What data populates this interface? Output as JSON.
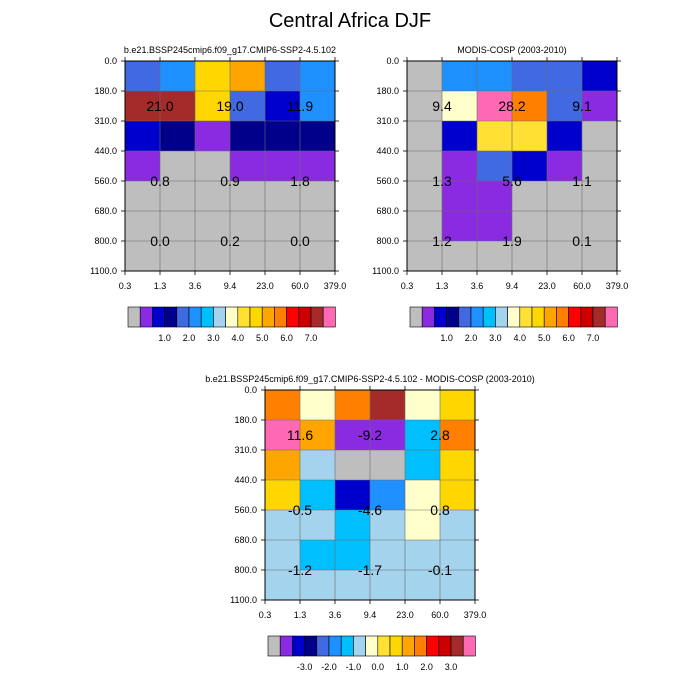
{
  "figure": {
    "title": "Central Africa DJF"
  },
  "colors": {
    "missing": "#BEBEBE",
    "abs_palette": [
      "#8A2BE2",
      "#0000CD",
      "#00008B",
      "#4169E1",
      "#1E90FF",
      "#00BFFF",
      "#A4D3EE",
      "#FFFFCC",
      "#FFE033",
      "#FFD700",
      "#FFA500",
      "#FF7F00",
      "#FF0000",
      "#CC0000",
      "#A52A2A",
      "#FF69B4"
    ],
    "diff_palette": [
      "#8A2BE2",
      "#0000CD",
      "#00008B",
      "#4169E1",
      "#1E90FF",
      "#00BFFF",
      "#A4D3EE",
      "#FFFFCC",
      "#FFE033",
      "#FFD700",
      "#FFA500",
      "#FF7F00",
      "#FF0000",
      "#CC0000",
      "#A52A2A",
      "#FF69B4"
    ]
  },
  "chart_data": [
    {
      "id": "model",
      "type": "heatmap",
      "title": "b.e21.BSSP245cmip6.f09_g17.CMIP6-SSP2-4.5.102",
      "xticks": [
        "0.3",
        "1.3",
        "3.6",
        "9.4",
        "23.0",
        "60.0",
        "379.0"
      ],
      "yticks": [
        "0.0",
        "180.0",
        "310.0",
        "440.0",
        "560.0",
        "680.0",
        "800.0",
        "1100.0"
      ],
      "cells": [
        [
          "#4169E1",
          "#1E90FF",
          "#FFD700",
          "#FFA500",
          "#4169E1",
          "#1E90FF"
        ],
        [
          "#A52A2A",
          "#A52A2A",
          "#FFD700",
          "#4169E1",
          "#0000CD",
          "#1E90FF"
        ],
        [
          "#0000CD",
          "#00008B",
          "#8A2BE2",
          "#00008B",
          "#00008B",
          "#00008B"
        ],
        [
          "#8A2BE2",
          "#BEBEBE",
          "#BEBEBE",
          "#8A2BE2",
          "#8A2BE2",
          "#8A2BE2"
        ],
        [
          "#BEBEBE",
          "#BEBEBE",
          "#BEBEBE",
          "#BEBEBE",
          "#BEBEBE",
          "#BEBEBE"
        ],
        [
          "#BEBEBE",
          "#BEBEBE",
          "#BEBEBE",
          "#BEBEBE",
          "#BEBEBE",
          "#BEBEBE"
        ],
        [
          "#BEBEBE",
          "#BEBEBE",
          "#BEBEBE",
          "#BEBEBE",
          "#BEBEBE",
          "#BEBEBE"
        ]
      ],
      "annotations": [
        {
          "text": "21.0",
          "col": 1,
          "row": 1.5
        },
        {
          "text": "19.0",
          "col": 3,
          "row": 1.5
        },
        {
          "text": "11.9",
          "col": 5,
          "row": 1.5
        },
        {
          "text": "0.8",
          "col": 1,
          "row": 4.0
        },
        {
          "text": "0.9",
          "col": 3,
          "row": 4.0
        },
        {
          "text": "1.8",
          "col": 5,
          "row": 4.0
        },
        {
          "text": "0.0",
          "col": 1,
          "row": 6.0
        },
        {
          "text": "0.2",
          "col": 3,
          "row": 6.0
        },
        {
          "text": "0.0",
          "col": 5,
          "row": 6.0
        }
      ],
      "legend": {
        "palette": "abs_palette",
        "labels": [
          "1.0",
          "2.0",
          "3.0",
          "4.0",
          "5.0",
          "6.0",
          "7.0"
        ]
      }
    },
    {
      "id": "obs",
      "type": "heatmap",
      "title": "MODIS-COSP (2003-2010)",
      "xticks": [
        "0.3",
        "1.3",
        "3.6",
        "9.4",
        "23.0",
        "60.0",
        "379.0"
      ],
      "yticks": [
        "0.0",
        "180.0",
        "310.0",
        "440.0",
        "560.0",
        "680.0",
        "800.0",
        "1100.0"
      ],
      "cells": [
        [
          "#BEBEBE",
          "#1E90FF",
          "#1E90FF",
          "#4169E1",
          "#4169E1",
          "#0000CD"
        ],
        [
          "#BEBEBE",
          "#FFFFCC",
          "#FF69B4",
          "#FF7F00",
          "#4169E1",
          "#8A2BE2"
        ],
        [
          "#BEBEBE",
          "#0000CD",
          "#FFE033",
          "#FFE033",
          "#0000CD",
          "#BEBEBE"
        ],
        [
          "#BEBEBE",
          "#8A2BE2",
          "#4169E1",
          "#0000CD",
          "#8A2BE2",
          "#BEBEBE"
        ],
        [
          "#BEBEBE",
          "#8A2BE2",
          "#8A2BE2",
          "#BEBEBE",
          "#BEBEBE",
          "#BEBEBE"
        ],
        [
          "#BEBEBE",
          "#8A2BE2",
          "#8A2BE2",
          "#BEBEBE",
          "#BEBEBE",
          "#BEBEBE"
        ],
        [
          "#BEBEBE",
          "#BEBEBE",
          "#BEBEBE",
          "#BEBEBE",
          "#BEBEBE",
          "#BEBEBE"
        ]
      ],
      "annotations": [
        {
          "text": "9.4",
          "col": 1,
          "row": 1.5
        },
        {
          "text": "28.2",
          "col": 3,
          "row": 1.5
        },
        {
          "text": "9.1",
          "col": 5,
          "row": 1.5
        },
        {
          "text": "1.3",
          "col": 1,
          "row": 4.0
        },
        {
          "text": "5.6",
          "col": 3,
          "row": 4.0
        },
        {
          "text": "1.1",
          "col": 5,
          "row": 4.0
        },
        {
          "text": "1.2",
          "col": 1,
          "row": 6.0
        },
        {
          "text": "1.9",
          "col": 3,
          "row": 6.0
        },
        {
          "text": "0.1",
          "col": 5,
          "row": 6.0
        }
      ],
      "legend": {
        "palette": "abs_palette",
        "labels": [
          "1.0",
          "2.0",
          "3.0",
          "4.0",
          "5.0",
          "6.0",
          "7.0"
        ]
      }
    },
    {
      "id": "diff",
      "type": "heatmap",
      "title": "b.e21.BSSP245cmip6.f09_g17.CMIP6-SSP2-4.5.102 - MODIS-COSP (2003-2010)",
      "xticks": [
        "0.3",
        "1.3",
        "3.6",
        "9.4",
        "23.0",
        "60.0",
        "379.0"
      ],
      "yticks": [
        "0.0",
        "180.0",
        "310.0",
        "440.0",
        "560.0",
        "680.0",
        "800.0",
        "1100.0"
      ],
      "cells": [
        [
          "#FF7F00",
          "#FFFFCC",
          "#FF7F00",
          "#A52A2A",
          "#FFFFCC",
          "#FFD700"
        ],
        [
          "#FF69B4",
          "#FFA500",
          "#8A2BE2",
          "#8A2BE2",
          "#00BFFF",
          "#FF7F00"
        ],
        [
          "#FFA500",
          "#A4D3EE",
          "#BEBEBE",
          "#BEBEBE",
          "#00BFFF",
          "#FFD700"
        ],
        [
          "#FFD700",
          "#00BFFF",
          "#0000CD",
          "#1E90FF",
          "#FFFFCC",
          "#FFD700"
        ],
        [
          "#A4D3EE",
          "#A4D3EE",
          "#00BFFF",
          "#A4D3EE",
          "#FFFFCC",
          "#A4D3EE"
        ],
        [
          "#A4D3EE",
          "#00BFFF",
          "#00BFFF",
          "#A4D3EE",
          "#A4D3EE",
          "#A4D3EE"
        ],
        [
          "#A4D3EE",
          "#A4D3EE",
          "#A4D3EE",
          "#A4D3EE",
          "#A4D3EE",
          "#A4D3EE"
        ]
      ],
      "annotations": [
        {
          "text": "11.6",
          "col": 1,
          "row": 1.5
        },
        {
          "text": "-9.2",
          "col": 3,
          "row": 1.5
        },
        {
          "text": "2.8",
          "col": 5,
          "row": 1.5
        },
        {
          "text": "-0.5",
          "col": 1,
          "row": 4.0
        },
        {
          "text": "-4.6",
          "col": 3,
          "row": 4.0
        },
        {
          "text": "0.8",
          "col": 5,
          "row": 4.0
        },
        {
          "text": "-1.2",
          "col": 1,
          "row": 6.0
        },
        {
          "text": "-1.7",
          "col": 3,
          "row": 6.0
        },
        {
          "text": "-0.1",
          "col": 5,
          "row": 6.0
        }
      ],
      "legend": {
        "palette": "diff_palette",
        "labels": [
          "-3.0",
          "-2.0",
          "-1.0",
          "0.0",
          "1.0",
          "2.0",
          "3.0"
        ]
      }
    }
  ]
}
